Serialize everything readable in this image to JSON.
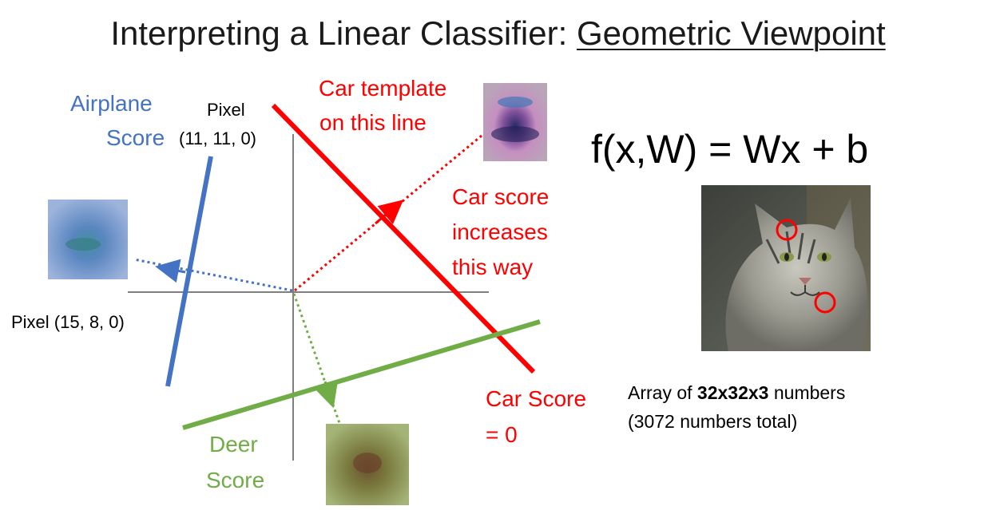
{
  "title": {
    "prefix": "Interpreting a Linear Classifier: ",
    "emphasis": "Geometric Viewpoint"
  },
  "formula": "f(x,W) = Wx + b",
  "labels": {
    "airplane_score_1": "Airplane",
    "airplane_score_2": "Score",
    "pixel_y_1": "Pixel",
    "pixel_y_2": "(11, 11, 0)",
    "pixel_x": "Pixel (15, 8, 0)",
    "car_template_1": "Car template",
    "car_template_2": "on this line",
    "car_score_dir_1": "Car score",
    "car_score_dir_2": "increases",
    "car_score_dir_3": "this way",
    "car_score_zero_1": "Car Score",
    "car_score_zero_2": "= 0",
    "deer_score_1": "Deer",
    "deer_score_2": "Score"
  },
  "caption": {
    "line1_prefix": "Array of ",
    "line1_bold": "32x32x3",
    "line1_suffix": " numbers",
    "line2": "(3072 numbers total)"
  },
  "icons": [
    "airplane-template-image",
    "car-template-image",
    "deer-template-image",
    "cat-image"
  ],
  "colors": {
    "airplane": "#4472c4",
    "car": "#ff0000",
    "deer": "#70ad47",
    "axes": "#7f7f7f",
    "text": "#000000"
  }
}
